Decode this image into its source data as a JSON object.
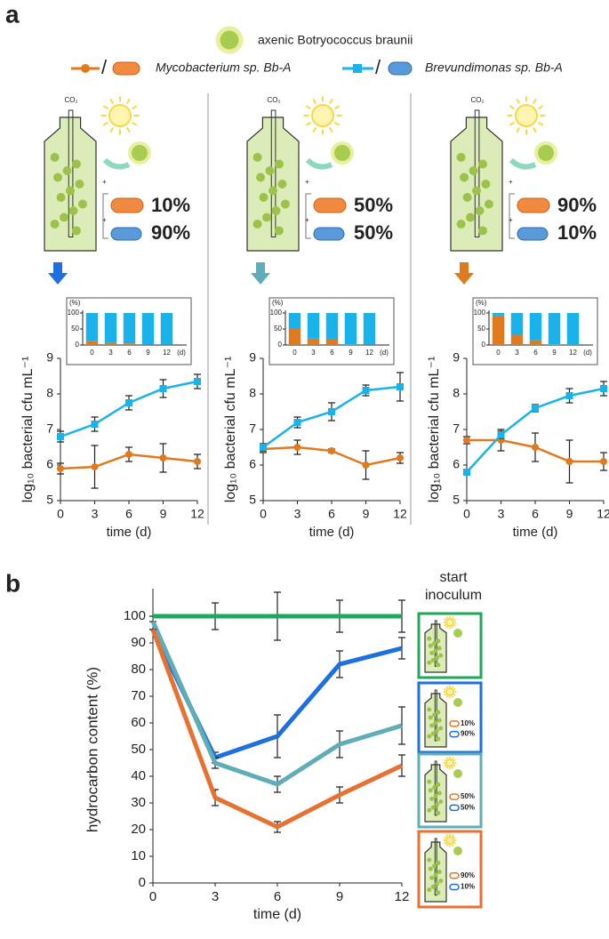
{
  "figure": {
    "panel_a": "a",
    "panel_b": "b",
    "co2": "CO₂",
    "axenic": "axenic Botryococcus braunii",
    "inocula": [
      {
        "myco": "10%",
        "brev": "90%"
      },
      {
        "myco": "50%",
        "brev": "50%"
      },
      {
        "myco": "90%",
        "brev": "10%"
      }
    ],
    "start_inoculum": [
      "start",
      "inoculum"
    ]
  },
  "chart_data": [
    {
      "type": "line",
      "x": [
        0,
        3,
        6,
        9,
        12
      ],
      "xlim": [
        0,
        12
      ],
      "xticks": [
        0,
        3,
        6,
        9,
        12
      ],
      "ylim": [
        5,
        9
      ],
      "yticks": [
        5,
        6,
        7,
        8,
        9
      ],
      "x_label": "time (d)",
      "y_label": "log₁₀ bacterial cfu mL⁻¹",
      "series": [
        {
          "name": "Mycobacterium sp. Bb-A",
          "color": "#e07a1f",
          "marker": "circle",
          "values": [
            5.9,
            5.95,
            6.3,
            6.2,
            6.1
          ],
          "errors": [
            0.15,
            0.6,
            0.2,
            0.4,
            0.2
          ]
        },
        {
          "name": "Brevundimonas sp. Bb-A",
          "color": "#1ab2ea",
          "marker": "square",
          "values": [
            6.8,
            7.15,
            7.75,
            8.15,
            8.35
          ],
          "errors": [
            0.15,
            0.2,
            0.2,
            0.25,
            0.2
          ]
        }
      ]
    },
    {
      "type": "stacked_bar",
      "categories": [
        "0",
        "3",
        "6",
        "9",
        "12"
      ],
      "unit_label": "(%)",
      "x_unit": "(d)",
      "ylim": [
        0,
        100
      ],
      "yticks": [
        0,
        50,
        100
      ],
      "series": [
        {
          "color": "#e07a1f",
          "values": [
            12,
            6,
            5,
            1,
            1
          ]
        },
        {
          "color": "#1ab2ea",
          "values": [
            88,
            94,
            95,
            99,
            99
          ]
        }
      ]
    },
    {
      "type": "line",
      "x": [
        0,
        3,
        6,
        9,
        12
      ],
      "xlim": [
        0,
        12
      ],
      "xticks": [
        0,
        3,
        6,
        9,
        12
      ],
      "ylim": [
        5,
        9
      ],
      "yticks": [
        5,
        6,
        7,
        8,
        9
      ],
      "x_label": "time (d)",
      "y_label": "log₁₀ bacterial cfu mL⁻¹",
      "series": [
        {
          "color": "#e07a1f",
          "marker": "circle",
          "values": [
            6.45,
            6.5,
            6.4,
            6.0,
            6.2
          ],
          "errors": [
            0.1,
            0.2,
            0.05,
            0.4,
            0.15
          ]
        },
        {
          "color": "#1ab2ea",
          "marker": "square",
          "values": [
            6.5,
            7.2,
            7.5,
            8.1,
            8.2
          ],
          "errors": [
            0.1,
            0.15,
            0.25,
            0.15,
            0.4
          ]
        }
      ]
    },
    {
      "type": "stacked_bar",
      "categories": [
        "0",
        "3",
        "6",
        "9",
        "12"
      ],
      "unit_label": "(%)",
      "x_unit": "(d)",
      "ylim": [
        0,
        100
      ],
      "yticks": [
        0,
        50,
        100
      ],
      "series": [
        {
          "color": "#e07a1f",
          "values": [
            50,
            20,
            18,
            2,
            1
          ]
        },
        {
          "color": "#1ab2ea",
          "values": [
            50,
            80,
            82,
            98,
            99
          ]
        }
      ]
    },
    {
      "type": "line",
      "x": [
        0,
        3,
        6,
        9,
        12
      ],
      "xlim": [
        0,
        12
      ],
      "xticks": [
        0,
        3,
        6,
        9,
        12
      ],
      "ylim": [
        5,
        9
      ],
      "yticks": [
        5,
        6,
        7,
        8,
        9
      ],
      "x_label": "time (d)",
      "y_label": "log₁₀ bacterial cfu mL⁻¹",
      "series": [
        {
          "color": "#e07a1f",
          "marker": "circle",
          "values": [
            6.7,
            6.7,
            6.5,
            6.1,
            6.1
          ],
          "errors": [
            0.1,
            0.3,
            0.4,
            0.6,
            0.25
          ]
        },
        {
          "color": "#1ab2ea",
          "marker": "square",
          "values": [
            5.8,
            6.85,
            7.6,
            7.95,
            8.15
          ],
          "errors": [
            0.05,
            0.1,
            0.1,
            0.2,
            0.2
          ]
        }
      ]
    },
    {
      "type": "stacked_bar",
      "categories": [
        "0",
        "3",
        "6",
        "9",
        "12"
      ],
      "unit_label": "(%)",
      "x_unit": "(d)",
      "ylim": [
        0,
        100
      ],
      "yticks": [
        0,
        50,
        100
      ],
      "series": [
        {
          "color": "#e07a1f",
          "values": [
            92,
            32,
            15,
            2,
            0
          ]
        },
        {
          "color": "#1ab2ea",
          "values": [
            8,
            68,
            85,
            98,
            100
          ]
        }
      ]
    },
    {
      "type": "line",
      "x": [
        0,
        3,
        6,
        9,
        12
      ],
      "xlim": [
        0,
        12
      ],
      "xticks": [
        0,
        3,
        6,
        9,
        12
      ],
      "ylim": [
        0,
        100
      ],
      "yticks": [
        0,
        10,
        20,
        30,
        40,
        50,
        60,
        70,
        80,
        90,
        100
      ],
      "x_label": "time (d)",
      "y_label": "hydrocarbon content (%)",
      "line_width": 5,
      "series": [
        {
          "color": "#1fa85a",
          "values": [
            100,
            100,
            100,
            100,
            100
          ],
          "errors": [
            0,
            5,
            9,
            6,
            6
          ]
        },
        {
          "color": "#1e6fe0",
          "values": [
            95,
            47,
            55,
            82,
            88
          ],
          "errors": [
            0,
            2,
            8,
            5,
            4
          ]
        },
        {
          "color": "#5fadb6",
          "values": [
            98,
            45,
            37,
            52,
            59
          ],
          "errors": [
            0,
            2,
            3,
            5,
            7
          ]
        },
        {
          "color": "#e87030",
          "values": [
            95,
            32,
            21,
            33,
            44
          ],
          "errors": [
            0,
            3,
            2,
            3,
            4
          ]
        }
      ]
    }
  ]
}
